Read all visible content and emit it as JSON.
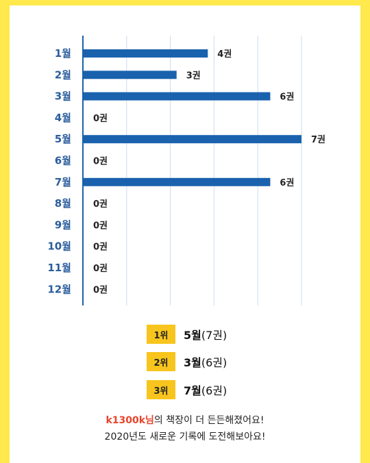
{
  "chart_data": {
    "type": "bar",
    "orientation": "horizontal",
    "categories": [
      "1월",
      "2월",
      "3월",
      "4월",
      "5월",
      "6월",
      "7월",
      "8월",
      "9월",
      "10월",
      "11월",
      "12월"
    ],
    "values": [
      4,
      3,
      6,
      0,
      7,
      0,
      6,
      0,
      0,
      0,
      0,
      0
    ],
    "value_labels": [
      "4권",
      "3권",
      "6권",
      "0권",
      "7권",
      "0권",
      "6권",
      "0권",
      "0권",
      "0권",
      "0권",
      "0권"
    ],
    "xlim": [
      0,
      7
    ],
    "grid": true,
    "colors": {
      "bar": "#1a62ae",
      "category_label": "#2a5d9c",
      "gridline": "#c9dced"
    }
  },
  "ranking": [
    {
      "badge": "1위",
      "month": "5월",
      "count": "(7권)"
    },
    {
      "badge": "2위",
      "month": "3월",
      "count": "(6권)"
    },
    {
      "badge": "3위",
      "month": "7월",
      "count": "(6권)"
    }
  ],
  "message": {
    "user": "k1300k님",
    "line1_rest": "의 책장이 더 든든해졌어요!",
    "line2": "2020년도 새로운 기록에 도전해보아요!"
  },
  "colors": {
    "background": "#ffe94d",
    "card": "#ffffff",
    "badge": "#f7c51d",
    "username": "#e8452c"
  }
}
